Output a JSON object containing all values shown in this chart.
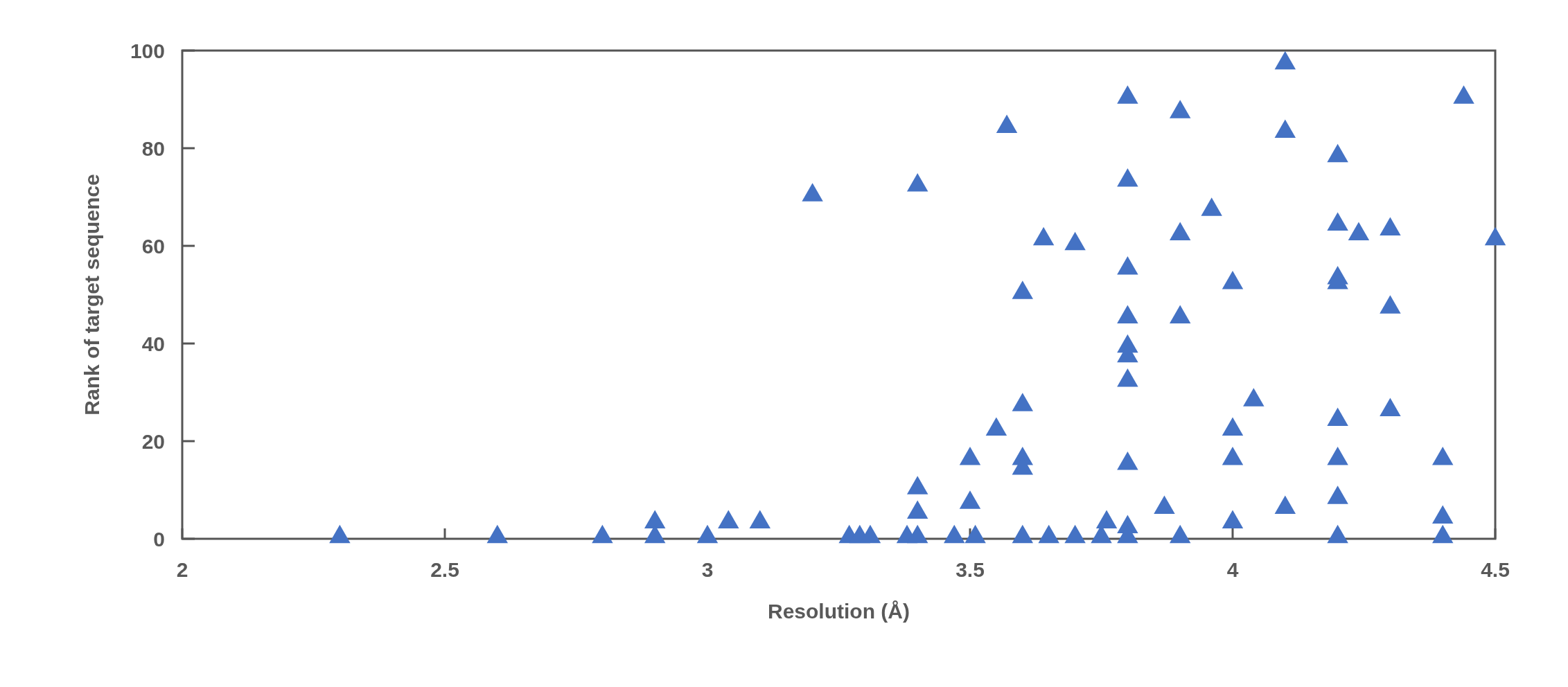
{
  "chart_data": {
    "type": "scatter",
    "xlabel": "Resolution (Å)",
    "ylabel": "Rank of target sequence",
    "xlim": [
      2,
      4.5
    ],
    "xticks": [
      2,
      2.5,
      3,
      3.5,
      4,
      4.5
    ],
    "ylim": [
      0,
      100
    ],
    "yticks": [
      0,
      20,
      40,
      60,
      80,
      100
    ],
    "grid": false,
    "marker": "triangle",
    "series": [
      {
        "color": "#4472c4",
        "x": [
          2.3,
          2.6,
          2.8,
          2.9,
          2.9,
          3.0,
          3.04,
          3.1,
          3.2,
          3.4,
          3.27,
          3.29,
          3.31,
          3.38,
          3.4,
          3.4,
          3.4,
          3.47,
          3.5,
          3.5,
          3.51,
          3.55,
          3.57,
          3.6,
          3.6,
          3.6,
          3.6,
          3.6,
          3.64,
          3.65,
          3.7,
          3.7,
          3.75,
          3.76,
          3.8,
          3.8,
          3.8,
          3.8,
          3.8,
          3.8,
          3.8,
          3.8,
          3.8,
          3.8,
          3.87,
          3.9,
          3.9,
          3.9,
          3.9,
          3.96,
          4.0,
          4.0,
          4.0,
          4.0,
          4.04,
          4.1,
          4.1,
          4.1,
          4.2,
          4.2,
          4.2,
          4.2,
          4.2,
          4.2,
          4.2,
          4.2,
          4.24,
          4.3,
          4.3,
          4.3,
          4.4,
          4.4,
          4.4,
          4.44,
          4.5
        ],
        "values": [
          1,
          1,
          1,
          4,
          1,
          1,
          4,
          4,
          71,
          73,
          1,
          1,
          1,
          1,
          11,
          6,
          1,
          1,
          17,
          8,
          1,
          23,
          85,
          51,
          28,
          17,
          15,
          1,
          62,
          1,
          61,
          1,
          1,
          4,
          91,
          74,
          56,
          46,
          40,
          38,
          33,
          16,
          3,
          1,
          7,
          88,
          63,
          46,
          1,
          68,
          53,
          23,
          17,
          4,
          29,
          98,
          84,
          7,
          79,
          65,
          54,
          53,
          25,
          17,
          9,
          1,
          63,
          64,
          48,
          27,
          17,
          5,
          1,
          91,
          62
        ]
      }
    ]
  }
}
